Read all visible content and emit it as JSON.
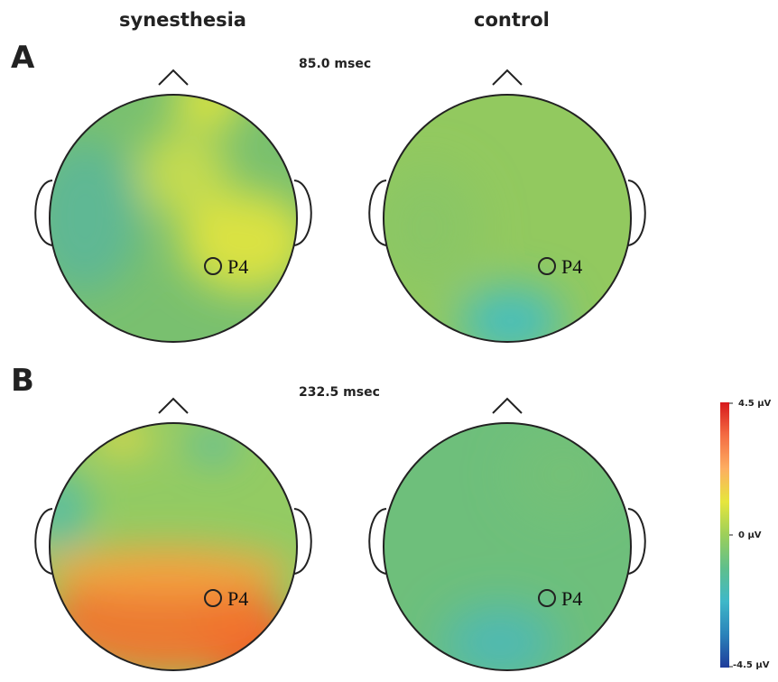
{
  "headers": {
    "left": "synesthesia",
    "right": "control"
  },
  "panels": {
    "A": {
      "label": "A",
      "time": "85.0 msec"
    },
    "B": {
      "label": "B",
      "time": "232.5 msec"
    }
  },
  "electrode_label": "P4",
  "colorbar": {
    "max_label": "4.5 μV",
    "mid_label": "0 μV",
    "min_label": "-4.5 μV",
    "colors": [
      "#d7191c",
      "#f46d43",
      "#fdae61",
      "#e6e63c",
      "#9ccf5a",
      "#5fbf8c",
      "#3fb8c8",
      "#2b83ba",
      "#1f3b9a"
    ]
  },
  "maps": {
    "A_synesthesia": {
      "base": "#79c06f",
      "blobs": [
        {
          "color": "#e9e83a",
          "strength": 0.9
        },
        {
          "color": "#e4e63e",
          "strength": 0.9
        },
        {
          "color": "#57b59e",
          "strength": 0.8
        },
        {
          "color": "#e2e542",
          "strength": 0.7
        }
      ]
    },
    "A_control": {
      "base": "#92c95f",
      "blobs": [
        {
          "color": "#3fbcc9",
          "strength": 0.9
        },
        {
          "color": "#86c46a",
          "strength": 0.6
        }
      ]
    },
    "B_synesthesia": {
      "base": "#93cb63",
      "blobs": [
        {
          "color": "#e8411f",
          "strength": 1.0
        },
        {
          "color": "#f0762f",
          "strength": 0.95
        },
        {
          "color": "#f7a640",
          "strength": 0.8
        },
        {
          "color": "#ddd848",
          "strength": 0.8
        },
        {
          "color": "#4ab9b3",
          "strength": 0.7
        },
        {
          "color": "#4db8b5",
          "strength": 0.6
        }
      ]
    },
    "B_control": {
      "base": "#6ebf7b",
      "blobs": [
        {
          "color": "#44b8c4",
          "strength": 0.8
        },
        {
          "color": "#7dc472",
          "strength": 0.4
        }
      ]
    }
  }
}
